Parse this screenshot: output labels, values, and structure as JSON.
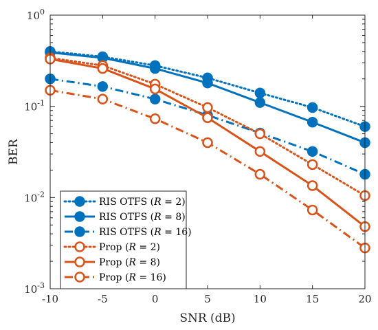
{
  "chart_data": {
    "type": "line",
    "xlabel": "SNR (dB)",
    "ylabel": "BER",
    "yscale": "log",
    "xlim": [
      -10,
      20
    ],
    "ylim": [
      0.001,
      1
    ],
    "grid": false,
    "legend_position": "bottom-left",
    "x": [
      -10,
      -5,
      0,
      5,
      10,
      15,
      20
    ],
    "x_tick_labels": [
      "-10",
      "-5",
      "0",
      "5",
      "10",
      "15",
      "20"
    ],
    "y_ticks": [
      {
        "value": 1,
        "base": "10",
        "exp": "0"
      },
      {
        "value": 0.1,
        "base": "10",
        "exp": "-1"
      },
      {
        "value": 0.01,
        "base": "10",
        "exp": "-2"
      },
      {
        "value": 0.001,
        "base": "10",
        "exp": "-3"
      }
    ],
    "series": [
      {
        "name": "RIS OTFS (R = 2)",
        "legend_prefix": "RIS OTFS (",
        "legend_var": "R",
        "legend_suffix": " = 2)",
        "color": "#0072BD",
        "line": "dotted",
        "marker": "filled-circle",
        "values": [
          0.4,
          0.35,
          0.28,
          0.205,
          0.14,
          0.097,
          0.06
        ]
      },
      {
        "name": "RIS OTFS (R = 8)",
        "legend_prefix": "RIS OTFS (",
        "legend_var": "R",
        "legend_suffix": " = 8)",
        "color": "#0072BD",
        "line": "solid",
        "marker": "filled-circle",
        "values": [
          0.39,
          0.34,
          0.26,
          0.18,
          0.11,
          0.067,
          0.04
        ]
      },
      {
        "name": "RIS OTFS (R = 16)",
        "legend_prefix": "RIS OTFS (",
        "legend_var": "R",
        "legend_suffix": " = 16)",
        "color": "#0072BD",
        "line": "dashdot",
        "marker": "filled-circle",
        "values": [
          0.2,
          0.165,
          0.12,
          0.08,
          0.051,
          0.032,
          0.018
        ]
      },
      {
        "name": "Prop (R = 2)",
        "legend_prefix": "Prop (",
        "legend_var": "R",
        "legend_suffix": " = 2)",
        "color": "#D95319",
        "line": "dotted",
        "marker": "open-circle",
        "values": [
          0.34,
          0.28,
          0.175,
          0.097,
          0.05,
          0.023,
          0.0105
        ]
      },
      {
        "name": "Prop (R = 8)",
        "legend_prefix": "Prop (",
        "legend_var": "R",
        "legend_suffix": " = 8)",
        "color": "#D95319",
        "line": "solid",
        "marker": "open-circle",
        "values": [
          0.33,
          0.26,
          0.155,
          0.075,
          0.032,
          0.0135,
          0.0048
        ]
      },
      {
        "name": "Prop (R = 16)",
        "legend_prefix": "Prop (",
        "legend_var": "R",
        "legend_suffix": " = 16)",
        "color": "#D95319",
        "line": "dashdot",
        "marker": "open-circle",
        "values": [
          0.15,
          0.12,
          0.073,
          0.04,
          0.018,
          0.0073,
          0.0028
        ]
      }
    ]
  }
}
